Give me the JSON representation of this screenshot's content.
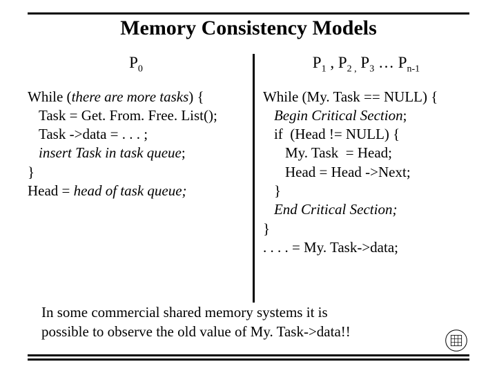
{
  "title": "Memory Consistency Models",
  "left": {
    "proc": "P",
    "proc_sub": "0",
    "lines": [
      {
        "pre": "While (",
        "it": "there are more tasks",
        "post": ") {",
        "indent": 0
      },
      {
        "pre": "Task = Get. From. Free. List();",
        "indent": 1
      },
      {
        "pre": "Task ->data = . . . ;",
        "indent": 1
      },
      {
        "it": "insert Task in task queue",
        "post": ";",
        "indent": 1
      },
      {
        "pre": "}",
        "indent": 0
      },
      {
        "pre": "Head = ",
        "it": "head of task queue;",
        "indent": 0
      }
    ]
  },
  "right": {
    "label_parts": [
      "P",
      "1",
      " ,  P",
      "2 ,",
      " P",
      "3",
      " … P",
      "n-1"
    ],
    "lines": [
      {
        "pre": "While (My. Task == NULL) {",
        "indent": 0
      },
      {
        "it": "Begin Critical Section",
        "post": ";",
        "indent": 1
      },
      {
        "pre": "if  (Head != NULL) {",
        "indent": 1
      },
      {
        "pre": "My. Task  = Head;",
        "indent": 2
      },
      {
        "pre": "Head = Head ->Next;",
        "indent": 2
      },
      {
        "pre": "}",
        "indent": 1
      },
      {
        "it": "End Critical Section;",
        "indent": 1
      },
      {
        "pre": "}",
        "indent": 0
      },
      {
        "pre": ". . . . = My. Task->data;",
        "indent": 0
      }
    ]
  },
  "caption_l1": "In some commercial shared memory systems it is",
  "caption_l2": "possible to observe the old value of My. Task->data!!",
  "colors": {
    "fg": "#000000",
    "bg": "#ffffff"
  },
  "fonts": {
    "title_size": 30,
    "body_size": 21,
    "sub_size": 14
  }
}
